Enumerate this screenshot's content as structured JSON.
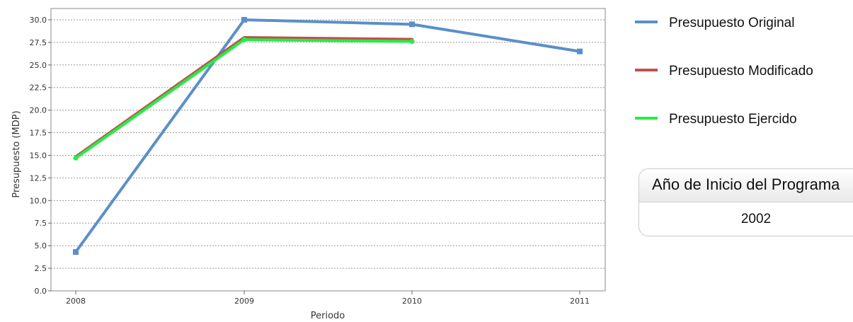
{
  "chart_data": {
    "type": "line",
    "xlabel": "Periodo",
    "ylabel": "Presupuesto (MDP)",
    "categories": [
      "2008",
      "2009",
      "2010",
      "2011"
    ],
    "ylim": [
      0,
      31.25
    ],
    "yticks": [
      "0.0",
      "2.5",
      "5.0",
      "7.5",
      "10.0",
      "12.5",
      "15.0",
      "17.5",
      "20.0",
      "22.5",
      "25.0",
      "27.5",
      "30.0"
    ],
    "grid": true,
    "legend_position": "right",
    "series": [
      {
        "name": "Presupuesto Original",
        "color": "#5b8fc8",
        "marker": "square",
        "values": [
          4.3,
          30.0,
          29.5,
          26.5
        ]
      },
      {
        "name": "Presupuesto Modificado",
        "color": "#c0504d",
        "marker": "none",
        "values": [
          14.8,
          28.0,
          27.8,
          null
        ]
      },
      {
        "name": "Presupuesto Ejercido",
        "color": "#22ee44",
        "marker": "circle",
        "values": [
          14.7,
          27.8,
          27.6,
          null
        ]
      }
    ]
  },
  "info_box": {
    "title": "Año de Inicio del Programa",
    "value": "2002"
  }
}
